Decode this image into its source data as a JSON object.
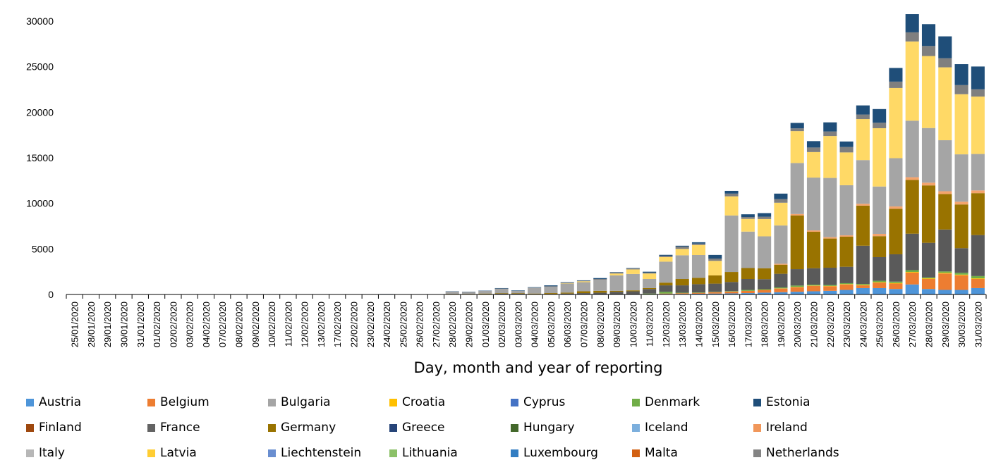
{
  "chart_data": {
    "type": "bar",
    "stacked": true,
    "title": "",
    "xlabel": "Day, month and year of reporting",
    "ylabel": "",
    "ylim": [
      0,
      30000
    ],
    "yticks": [
      0,
      5000,
      10000,
      15000,
      20000,
      25000,
      30000
    ],
    "grid": false,
    "legend_position": "bottom",
    "categories": [
      "25/01/2020",
      "28/01/2020",
      "29/01/2020",
      "30/01/2020",
      "31/01/2020",
      "01/02/2020",
      "02/02/2020",
      "03/02/2020",
      "04/02/2020",
      "07/02/2020",
      "08/02/2020",
      "09/02/2020",
      "10/02/2020",
      "11/02/2020",
      "12/02/2020",
      "13/02/2020",
      "17/02/2020",
      "22/02/2020",
      "23/02/2020",
      "24/02/2020",
      "25/02/2020",
      "26/02/2020",
      "27/02/2020",
      "28/02/2020",
      "29/02/2020",
      "01/03/2020",
      "02/03/2020",
      "03/03/2020",
      "04/03/2020",
      "05/03/2020",
      "06/03/2020",
      "07/03/2020",
      "08/03/2020",
      "09/03/2020",
      "10/03/2020",
      "11/03/2020",
      "12/03/2020",
      "13/03/2020",
      "14/03/2020",
      "15/03/2020",
      "16/03/2020",
      "17/03/2020",
      "18/03/2020",
      "19/03/2020",
      "20/03/2020",
      "21/03/2020",
      "22/03/2020",
      "23/03/2020",
      "24/03/2020",
      "25/03/2020",
      "26/03/2020",
      "27/03/2020",
      "28/03/2020",
      "29/03/2020",
      "30/03/2020",
      "31/03/2020"
    ],
    "series": [
      {
        "name": "Austria",
        "color": "#4E95D9",
        "values": [
          0,
          0,
          0,
          0,
          0,
          0,
          0,
          0,
          0,
          0,
          0,
          0,
          0,
          0,
          0,
          0,
          0,
          0,
          0,
          0,
          0,
          0,
          0,
          0,
          0,
          0,
          0,
          0,
          0,
          0,
          0,
          0,
          0,
          0,
          0,
          0,
          50,
          60,
          80,
          100,
          120,
          150,
          200,
          250,
          300,
          350,
          400,
          500,
          700,
          700,
          600,
          1100,
          600,
          500,
          500,
          700
        ]
      },
      {
        "name": "Belgium",
        "color": "#ED7D31",
        "values": [
          0,
          0,
          0,
          0,
          0,
          0,
          0,
          0,
          0,
          0,
          0,
          0,
          0,
          0,
          0,
          0,
          0,
          0,
          0,
          0,
          0,
          0,
          0,
          0,
          0,
          0,
          0,
          0,
          0,
          0,
          0,
          0,
          0,
          0,
          0,
          0,
          50,
          80,
          100,
          150,
          200,
          250,
          300,
          400,
          500,
          600,
          500,
          600,
          300,
          600,
          600,
          1300,
          1100,
          1800,
          1600,
          1000
        ]
      },
      {
        "name": "Croatia",
        "color": "#FFC000",
        "values": [
          0,
          0,
          0,
          0,
          0,
          0,
          0,
          0,
          0,
          0,
          0,
          0,
          0,
          0,
          0,
          0,
          0,
          0,
          0,
          0,
          0,
          0,
          0,
          0,
          0,
          0,
          0,
          0,
          0,
          0,
          0,
          0,
          0,
          0,
          0,
          0,
          0,
          0,
          0,
          0,
          0,
          0,
          0,
          20,
          30,
          30,
          40,
          40,
          50,
          50,
          60,
          70,
          70,
          80,
          80,
          70
        ]
      },
      {
        "name": "Denmark",
        "color": "#70AD47",
        "values": [
          0,
          0,
          0,
          0,
          0,
          0,
          0,
          0,
          0,
          0,
          0,
          0,
          0,
          0,
          0,
          0,
          0,
          0,
          0,
          0,
          0,
          0,
          0,
          0,
          0,
          0,
          0,
          0,
          0,
          0,
          0,
          0,
          0,
          0,
          0,
          100,
          200,
          60,
          50,
          40,
          50,
          100,
          80,
          100,
          150,
          100,
          100,
          100,
          100,
          150,
          150,
          200,
          100,
          150,
          200,
          250
        ]
      },
      {
        "name": "France",
        "color": "#5A5A5A",
        "values": [
          0,
          0,
          0,
          0,
          0,
          0,
          0,
          0,
          0,
          0,
          0,
          0,
          0,
          0,
          0,
          0,
          0,
          0,
          0,
          0,
          0,
          0,
          0,
          50,
          50,
          50,
          100,
          100,
          50,
          50,
          100,
          150,
          200,
          300,
          350,
          500,
          700,
          800,
          900,
          900,
          1000,
          1200,
          1100,
          1500,
          1800,
          1800,
          1900,
          1800,
          4200,
          2600,
          3000,
          4000,
          3800,
          4600,
          2700,
          4500
        ]
      },
      {
        "name": "Germany",
        "color": "#997300",
        "values": [
          0,
          0,
          0,
          0,
          0,
          0,
          0,
          0,
          0,
          0,
          0,
          0,
          0,
          0,
          0,
          0,
          0,
          0,
          0,
          0,
          0,
          0,
          0,
          20,
          20,
          50,
          50,
          50,
          50,
          100,
          100,
          200,
          200,
          100,
          100,
          100,
          300,
          700,
          700,
          900,
          1100,
          1200,
          1200,
          1000,
          5900,
          4000,
          3200,
          3300,
          4400,
          2300,
          5000,
          5900,
          6300,
          3900,
          4800,
          4600
        ]
      },
      {
        "name": "Hungary",
        "color": "#43682B",
        "values": [
          0,
          0,
          0,
          0,
          0,
          0,
          0,
          0,
          0,
          0,
          0,
          0,
          0,
          0,
          0,
          0,
          0,
          0,
          0,
          0,
          0,
          0,
          0,
          0,
          0,
          0,
          0,
          0,
          0,
          0,
          0,
          0,
          0,
          0,
          0,
          0,
          0,
          0,
          0,
          0,
          0,
          0,
          0,
          0,
          0,
          0,
          0,
          0,
          0,
          0,
          0,
          0,
          0,
          0,
          0,
          0
        ]
      },
      {
        "name": "Ireland",
        "color": "#F4A46C",
        "values": [
          0,
          0,
          0,
          0,
          0,
          0,
          0,
          0,
          0,
          0,
          0,
          0,
          0,
          0,
          0,
          0,
          0,
          0,
          0,
          0,
          0,
          0,
          0,
          0,
          0,
          0,
          0,
          0,
          0,
          0,
          0,
          0,
          0,
          0,
          0,
          0,
          0,
          0,
          0,
          0,
          0,
          0,
          0,
          100,
          150,
          150,
          150,
          150,
          200,
          250,
          250,
          300,
          300,
          300,
          300,
          300
        ]
      },
      {
        "name": "Italy",
        "color": "#A5A5A5",
        "values": [
          0,
          0,
          0,
          0,
          0,
          0,
          0,
          0,
          0,
          0,
          0,
          0,
          0,
          0,
          0,
          0,
          0,
          0,
          0,
          0,
          0,
          0,
          0,
          250,
          200,
          300,
          500,
          250,
          650,
          700,
          1000,
          1000,
          1200,
          1700,
          1800,
          1000,
          2300,
          2600,
          2500,
          0,
          6200,
          4000,
          3500,
          4200,
          5600,
          5800,
          6500,
          5500,
          4800,
          5200,
          5300,
          6200,
          6000,
          5600,
          5200,
          4000
        ]
      },
      {
        "name": "Latvia",
        "color": "#FFD966",
        "values": [
          0,
          0,
          0,
          0,
          0,
          0,
          0,
          0,
          0,
          0,
          0,
          0,
          0,
          0,
          0,
          0,
          0,
          0,
          0,
          0,
          0,
          0,
          0,
          0,
          0,
          0,
          0,
          0,
          0,
          0,
          50,
          100,
          0,
          200,
          500,
          600,
          500,
          700,
          1100,
          1600,
          2100,
          1400,
          1900,
          2500,
          3500,
          2800,
          4600,
          3600,
          4500,
          6400,
          7700,
          8700,
          7900,
          8000,
          6600,
          6300
        ]
      },
      {
        "name": "Netherlands",
        "color": "#7F7F7F",
        "values": [
          0,
          0,
          0,
          0,
          0,
          0,
          0,
          0,
          0,
          0,
          0,
          0,
          0,
          0,
          0,
          0,
          0,
          0,
          0,
          0,
          0,
          0,
          0,
          0,
          0,
          0,
          0,
          0,
          0,
          50,
          50,
          50,
          100,
          100,
          100,
          100,
          150,
          250,
          150,
          250,
          300,
          200,
          250,
          400,
          300,
          500,
          500,
          600,
          500,
          600,
          700,
          1000,
          1100,
          1000,
          1000,
          800
        ]
      },
      {
        "name": "Estonia",
        "color": "#1F4E79",
        "values": [
          0,
          0,
          0,
          0,
          0,
          0,
          0,
          0,
          0,
          0,
          0,
          0,
          0,
          0,
          0,
          0,
          0,
          0,
          0,
          50,
          20,
          30,
          30,
          30,
          30,
          30,
          50,
          50,
          50,
          100,
          50,
          50,
          100,
          50,
          50,
          100,
          100,
          100,
          150,
          400,
          300,
          300,
          400,
          600,
          600,
          700,
          1000,
          600,
          1000,
          1500,
          1500,
          2000,
          2400,
          2400,
          2300,
          2500
        ]
      }
    ]
  },
  "legend": {
    "rows": [
      [
        {
          "name": "Austria",
          "color": "#4E95D9"
        },
        {
          "name": "Belgium",
          "color": "#ED7D31"
        },
        {
          "name": "Bulgaria",
          "color": "#A5A5A5"
        },
        {
          "name": "Croatia",
          "color": "#FFC000"
        },
        {
          "name": "Cyprus",
          "color": "#4472C4"
        },
        {
          "name": "Denmark",
          "color": "#70AD47"
        },
        {
          "name": "Estonia",
          "color": "#1F4E79"
        }
      ],
      [
        {
          "name": "Finland",
          "color": "#9E480E"
        },
        {
          "name": "France",
          "color": "#636363"
        },
        {
          "name": "Germany",
          "color": "#997300"
        },
        {
          "name": "Greece",
          "color": "#264478"
        },
        {
          "name": "Hungary",
          "color": "#43682B"
        },
        {
          "name": "Iceland",
          "color": "#7CAFDD"
        },
        {
          "name": "Ireland",
          "color": "#F1975A"
        }
      ],
      [
        {
          "name": "Italy",
          "color": "#B7B7B7"
        },
        {
          "name": "Latvia",
          "color": "#FFCD33"
        },
        {
          "name": "Liechtenstein",
          "color": "#698ED0"
        },
        {
          "name": "Lithuania",
          "color": "#8CC168"
        },
        {
          "name": "Luxembourg",
          "color": "#327DC2"
        },
        {
          "name": "Malta",
          "color": "#D26012"
        },
        {
          "name": "Netherlands",
          "color": "#848484"
        }
      ]
    ]
  }
}
